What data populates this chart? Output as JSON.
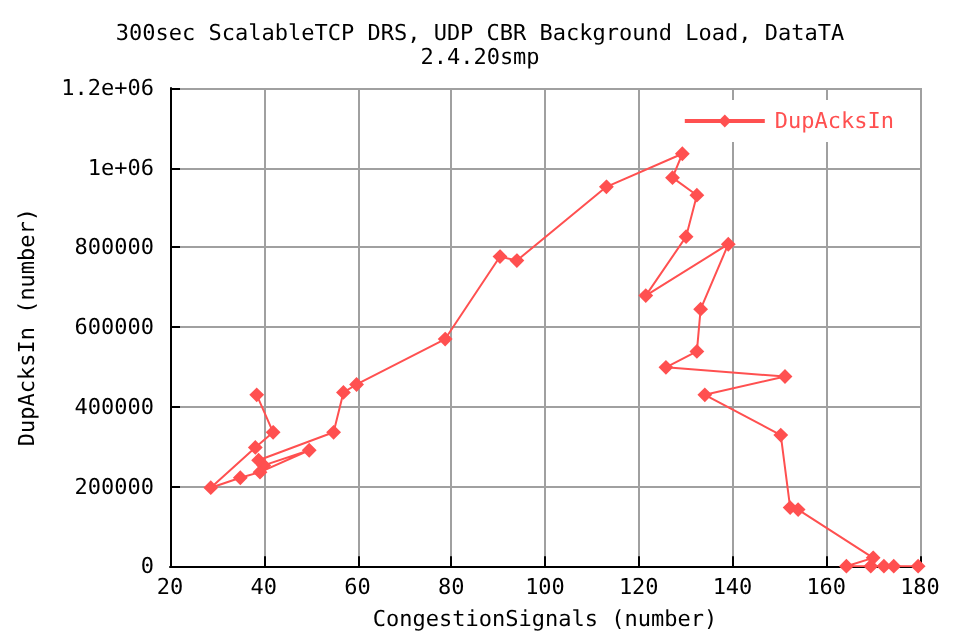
{
  "chart_data": {
    "type": "line",
    "title": "300sec ScalableTCP DRS, UDP CBR Background Load, DataTA",
    "subtitle": "2.4.20smp",
    "xlabel": "CongestionSignals (number)",
    "ylabel": "DupAcksIn (number)",
    "series": [
      {
        "name": "DupAcksIn",
        "color": "#ff5050",
        "x": [
          38.5,
          42,
          38.2,
          28.7,
          35,
          39.2,
          49.7,
          40,
          38.9,
          54.9,
          57,
          59.8,
          78.7,
          90.4,
          94,
          113.1,
          129.3,
          127.2,
          132.4,
          130.1,
          121.5,
          139.1,
          133.2,
          132.4,
          125.8,
          151.2,
          134.1,
          150.3,
          152.3,
          154,
          170,
          164.3,
          169.5,
          172.3,
          174.4,
          179.6
        ],
        "values": [
          430000,
          336000,
          298000,
          197000,
          222000,
          236000,
          291000,
          253000,
          266000,
          336000,
          436000,
          456000,
          570000,
          777000,
          767000,
          952000,
          1035000,
          975000,
          931000,
          827000,
          679000,
          808000,
          645000,
          539000,
          499000,
          476000,
          430000,
          329000,
          147000,
          142000,
          21000,
          0,
          0,
          0,
          0,
          0
        ]
      }
    ],
    "xlim": [
      20,
      180
    ],
    "xticks": [
      20,
      40,
      60,
      80,
      100,
      120,
      140,
      160,
      180
    ],
    "ylim": [
      0,
      1200000
    ],
    "yticks": [
      0,
      200000,
      400000,
      600000,
      800000,
      {
        "value": 1000000,
        "label": "1e+06"
      },
      {
        "value": 1200000,
        "label": "1.2e+06"
      }
    ],
    "grid": true,
    "legend": "top right",
    "marker": "diamond",
    "line_style": "solid"
  }
}
